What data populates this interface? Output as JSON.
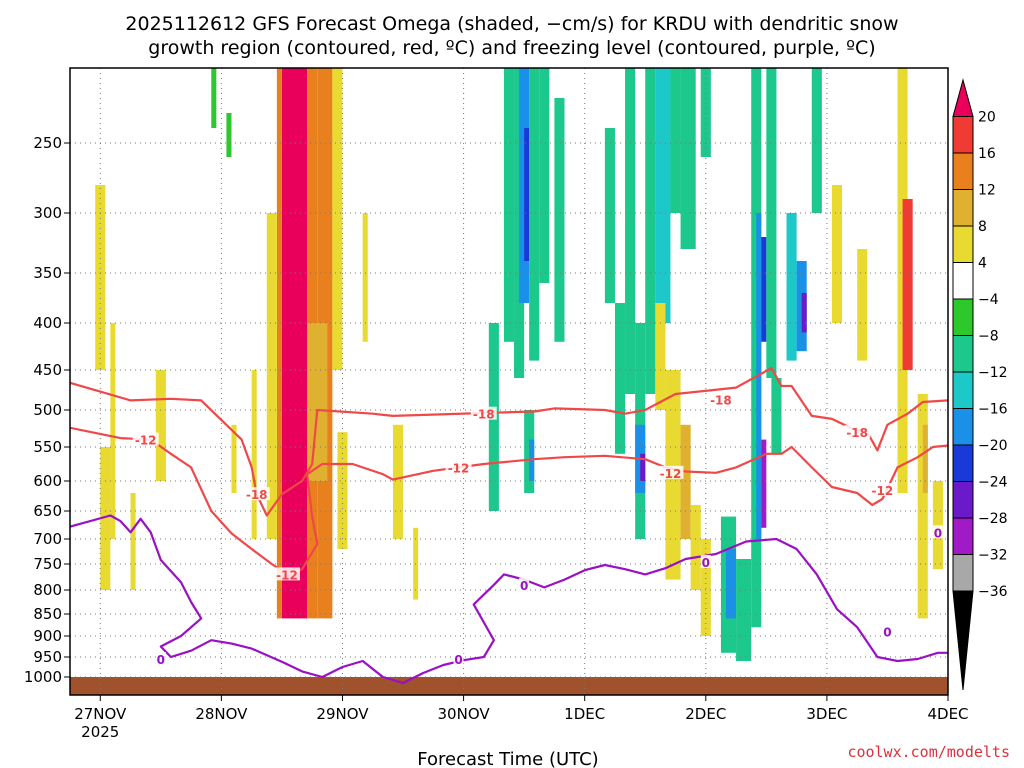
{
  "title_line1": "2025112612 GFS Forecast Omega (shaded, −cm/s) for KRDU with dendritic snow",
  "title_line2": "growth region (contoured, red, ºC) and freezing level (contoured, purple, ºC)",
  "xlabel": "Forecast Time (UTC)",
  "credit": "coolwx.com/modelts",
  "chart_data": {
    "type": "heatmap",
    "x_ticks": [
      {
        "label": "27NOV",
        "sub": "2025",
        "t": 0
      },
      {
        "label": "28NOV",
        "t": 24
      },
      {
        "label": "29NOV",
        "t": 48
      },
      {
        "label": "30NOV",
        "t": 72
      },
      {
        "label": "1DEC",
        "t": 96
      },
      {
        "label": "2DEC",
        "t": 120
      },
      {
        "label": "3DEC",
        "t": 144
      },
      {
        "label": "4DEC",
        "t": 168
      }
    ],
    "y_ticks": [
      250,
      300,
      350,
      400,
      450,
      500,
      550,
      600,
      650,
      700,
      750,
      800,
      850,
      900,
      950,
      1000
    ],
    "grid": true,
    "colorbar": {
      "labels": [
        "20",
        "16",
        "12",
        "8",
        "4",
        "−4",
        "−8",
        "−12",
        "−16",
        "−20",
        "−24",
        "−28",
        "−32",
        "−36"
      ],
      "colors": [
        "#e8005a",
        "#f03a34",
        "#e8801e",
        "#e0b030",
        "#e8da30",
        "#ffffff",
        "#2cc82c",
        "#1cc88c",
        "#1cc8c8",
        "#1a90e8",
        "#1a3ad8",
        "#6a1ac8",
        "#a01ac8",
        "#a8a8a8",
        "#000000"
      ]
    },
    "omega_cells": [
      {
        "t0": 36,
        "t1": 41,
        "p0": 180,
        "p1": 860,
        "v": 20
      },
      {
        "t0": 35,
        "t1": 36,
        "p0": 180,
        "p1": 860,
        "v": 14
      },
      {
        "t0": 41,
        "t1": 43,
        "p0": 180,
        "p1": 860,
        "v": 12
      },
      {
        "t0": 43,
        "t1": 46,
        "p0": 180,
        "p1": 860,
        "v": 14
      },
      {
        "t0": 37,
        "t1": 40,
        "p0": 180,
        "p1": 480,
        "v": 22
      },
      {
        "t0": 41,
        "t1": 45,
        "p0": 400,
        "p1": 600,
        "v": 10
      },
      {
        "t0": 46,
        "t1": 48,
        "p0": 200,
        "p1": 450,
        "v": 6
      },
      {
        "t0": 33,
        "t1": 35,
        "p0": 300,
        "p1": 700,
        "v": 6
      },
      {
        "t0": -1,
        "t1": 1,
        "p0": 280,
        "p1": 450,
        "v": 6
      },
      {
        "t0": 0,
        "t1": 2,
        "p0": 550,
        "p1": 800,
        "v": 6
      },
      {
        "t0": 2,
        "t1": 3,
        "p0": 400,
        "p1": 700,
        "v": 6
      },
      {
        "t0": 6,
        "t1": 7,
        "p0": 620,
        "p1": 800,
        "v": 6
      },
      {
        "t0": 11,
        "t1": 13,
        "p0": 450,
        "p1": 600,
        "v": 6
      },
      {
        "t0": 26,
        "t1": 27,
        "p0": 520,
        "p1": 620,
        "v": 6
      },
      {
        "t0": 30,
        "t1": 31,
        "p0": 450,
        "p1": 700,
        "v": 6
      },
      {
        "t0": 47,
        "t1": 49,
        "p0": 530,
        "p1": 720,
        "v": 6
      },
      {
        "t0": 52,
        "t1": 53,
        "p0": 300,
        "p1": 420,
        "v": 6
      },
      {
        "t0": 58,
        "t1": 60,
        "p0": 520,
        "p1": 700,
        "v": 6
      },
      {
        "t0": 62,
        "t1": 63,
        "p0": 680,
        "p1": 820,
        "v": 6
      },
      {
        "t0": 22,
        "t1": 23,
        "p0": 180,
        "p1": 240,
        "v": -6
      },
      {
        "t0": 25,
        "t1": 26,
        "p0": 230,
        "p1": 260,
        "v": -6
      },
      {
        "t0": 77,
        "t1": 79,
        "p0": 400,
        "p1": 650,
        "v": -8
      },
      {
        "t0": 80,
        "t1": 82,
        "p0": 190,
        "p1": 420,
        "v": -8
      },
      {
        "t0": 82,
        "t1": 84,
        "p0": 200,
        "p1": 460,
        "v": -8
      },
      {
        "t0": 83,
        "t1": 85,
        "p0": 200,
        "p1": 380,
        "v": -16
      },
      {
        "t0": 84,
        "t1": 85,
        "p0": 240,
        "p1": 340,
        "v": -22
      },
      {
        "t0": 85,
        "t1": 87,
        "p0": 190,
        "p1": 440,
        "v": -10
      },
      {
        "t0": 87,
        "t1": 89,
        "p0": 200,
        "p1": 360,
        "v": -8
      },
      {
        "t0": 90,
        "t1": 92,
        "p0": 220,
        "p1": 420,
        "v": -8
      },
      {
        "t0": 84,
        "t1": 86,
        "p0": 500,
        "p1": 620,
        "v": -10
      },
      {
        "t0": 85,
        "t1": 86,
        "p0": 540,
        "p1": 600,
        "v": -16
      },
      {
        "t0": 100,
        "t1": 102,
        "p0": 240,
        "p1": 380,
        "v": -8
      },
      {
        "t0": 102,
        "t1": 104,
        "p0": 380,
        "p1": 560,
        "v": -8
      },
      {
        "t0": 104,
        "t1": 106,
        "p0": 180,
        "p1": 480,
        "v": -8
      },
      {
        "t0": 106,
        "t1": 108,
        "p0": 400,
        "p1": 700,
        "v": -8
      },
      {
        "t0": 106,
        "t1": 108,
        "p0": 520,
        "p1": 620,
        "v": -16
      },
      {
        "t0": 107,
        "t1": 108,
        "p0": 560,
        "p1": 600,
        "v": -24
      },
      {
        "t0": 108,
        "t1": 110,
        "p0": 180,
        "p1": 480,
        "v": -10
      },
      {
        "t0": 110,
        "t1": 113,
        "p0": 180,
        "p1": 400,
        "v": -14
      },
      {
        "t0": 113,
        "t1": 115,
        "p0": 180,
        "p1": 300,
        "v": -8
      },
      {
        "t0": 115,
        "t1": 118,
        "p0": 180,
        "p1": 330,
        "v": -8
      },
      {
        "t0": 119,
        "t1": 121,
        "p0": 180,
        "p1": 260,
        "v": -8
      },
      {
        "t0": 110,
        "t1": 112,
        "p0": 380,
        "p1": 500,
        "v": 6
      },
      {
        "t0": 112,
        "t1": 115,
        "p0": 450,
        "p1": 780,
        "v": 6
      },
      {
        "t0": 115,
        "t1": 117,
        "p0": 520,
        "p1": 700,
        "v": 10
      },
      {
        "t0": 117,
        "t1": 119,
        "p0": 640,
        "p1": 800,
        "v": 6
      },
      {
        "t0": 119,
        "t1": 121,
        "p0": 700,
        "p1": 900,
        "v": 6
      },
      {
        "t0": 123,
        "t1": 126,
        "p0": 660,
        "p1": 940,
        "v": -8
      },
      {
        "t0": 124,
        "t1": 126,
        "p0": 720,
        "p1": 860,
        "v": -16
      },
      {
        "t0": 126,
        "t1": 129,
        "p0": 740,
        "p1": 960,
        "v": -8
      },
      {
        "t0": 129,
        "t1": 131,
        "p0": 190,
        "p1": 880,
        "v": -8
      },
      {
        "t0": 130,
        "t1": 131,
        "p0": 300,
        "p1": 700,
        "v": -18
      },
      {
        "t0": 131,
        "t1": 132,
        "p0": 540,
        "p1": 680,
        "v": -28
      },
      {
        "t0": 131,
        "t1": 132,
        "p0": 320,
        "p1": 420,
        "v": -22
      },
      {
        "t0": 132,
        "t1": 134,
        "p0": 190,
        "p1": 460,
        "v": -10
      },
      {
        "t0": 133,
        "t1": 135,
        "p0": 460,
        "p1": 560,
        "v": -8
      },
      {
        "t0": 136,
        "t1": 138,
        "p0": 300,
        "p1": 440,
        "v": -12
      },
      {
        "t0": 138,
        "t1": 140,
        "p0": 340,
        "p1": 430,
        "v": -16
      },
      {
        "t0": 139,
        "t1": 140,
        "p0": 370,
        "p1": 410,
        "v": -26
      },
      {
        "t0": 141,
        "t1": 143,
        "p0": 200,
        "p1": 300,
        "v": -8
      },
      {
        "t0": 145,
        "t1": 147,
        "p0": 280,
        "p1": 400,
        "v": 6
      },
      {
        "t0": 150,
        "t1": 152,
        "p0": 330,
        "p1": 440,
        "v": 6
      },
      {
        "t0": 158,
        "t1": 160,
        "p0": 180,
        "p1": 620,
        "v": 6
      },
      {
        "t0": 159,
        "t1": 161,
        "p0": 290,
        "p1": 450,
        "v": 18
      },
      {
        "t0": 162,
        "t1": 164,
        "p0": 480,
        "p1": 860,
        "v": 6
      },
      {
        "t0": 163,
        "t1": 164,
        "p0": 520,
        "p1": 620,
        "v": 10
      },
      {
        "t0": 165,
        "t1": 167,
        "p0": 600,
        "p1": 760,
        "v": 6
      }
    ],
    "contours": [
      {
        "name": "-18",
        "color": "#f04848",
        "pts": [
          [
            -6,
            466
          ],
          [
            6,
            488
          ],
          [
            14,
            486
          ],
          [
            20,
            488
          ],
          [
            28,
            540
          ],
          [
            30,
            580
          ],
          [
            31,
            622
          ],
          [
            33,
            658
          ],
          [
            36,
            622
          ],
          [
            40,
            600
          ],
          [
            42,
            575
          ],
          [
            43,
            500
          ],
          [
            54,
            505
          ],
          [
            58,
            508
          ],
          [
            76,
            504
          ],
          [
            86,
            502
          ],
          [
            90,
            498
          ],
          [
            100,
            500
          ],
          [
            104,
            505
          ],
          [
            108,
            500
          ],
          [
            114,
            480
          ],
          [
            126,
            472
          ],
          [
            130,
            458
          ],
          [
            133,
            448
          ],
          [
            135,
            470
          ],
          [
            137,
            470
          ],
          [
            141,
            508
          ],
          [
            145,
            512
          ],
          [
            149,
            525
          ],
          [
            152,
            530
          ],
          [
            154,
            555
          ],
          [
            156,
            520
          ],
          [
            160,
            505
          ],
          [
            163,
            490
          ],
          [
            168,
            488
          ]
        ]
      },
      {
        "name": "-12",
        "color": "#f04848",
        "pts": [
          [
            -6,
            524
          ],
          [
            4,
            538
          ],
          [
            10,
            540
          ],
          [
            14,
            560
          ],
          [
            18,
            580
          ],
          [
            22,
            650
          ],
          [
            26,
            690
          ],
          [
            30,
            720
          ],
          [
            34,
            750
          ],
          [
            37,
            770
          ],
          [
            40,
            760
          ],
          [
            43,
            710
          ],
          [
            42,
            660
          ],
          [
            41,
            590
          ],
          [
            44,
            575
          ],
          [
            50,
            575
          ],
          [
            56,
            590
          ],
          [
            58,
            598
          ],
          [
            66,
            585
          ],
          [
            76,
            575
          ],
          [
            86,
            568
          ],
          [
            92,
            565
          ],
          [
            100,
            563
          ],
          [
            108,
            568
          ],
          [
            112,
            580
          ],
          [
            116,
            586
          ],
          [
            122,
            588
          ],
          [
            126,
            580
          ],
          [
            132,
            560
          ],
          [
            135,
            560
          ],
          [
            137,
            550
          ],
          [
            141,
            580
          ],
          [
            145,
            610
          ],
          [
            150,
            620
          ],
          [
            153,
            640
          ],
          [
            155,
            630
          ],
          [
            158,
            580
          ],
          [
            162,
            565
          ],
          [
            165,
            550
          ],
          [
            168,
            548
          ]
        ]
      },
      {
        "name": "0",
        "color": "#9a10c4",
        "pts": [
          [
            -6,
            678
          ],
          [
            2,
            658
          ],
          [
            4,
            668
          ],
          [
            6,
            688
          ],
          [
            8,
            664
          ],
          [
            10,
            688
          ],
          [
            12,
            742
          ],
          [
            16,
            785
          ],
          [
            18,
            825
          ],
          [
            20,
            860
          ],
          [
            16,
            900
          ],
          [
            12,
            925
          ],
          [
            14,
            950
          ],
          [
            18,
            935
          ],
          [
            22,
            910
          ],
          [
            26,
            918
          ],
          [
            30,
            930
          ],
          [
            36,
            962
          ],
          [
            40,
            986
          ],
          [
            44,
            1000
          ],
          [
            48,
            975
          ],
          [
            52,
            960
          ],
          [
            56,
            1000
          ],
          [
            60,
            1010
          ],
          [
            64,
            990
          ],
          [
            68,
            970
          ],
          [
            72,
            958
          ],
          [
            76,
            950
          ],
          [
            78,
            910
          ],
          [
            74,
            830
          ],
          [
            78,
            790
          ],
          [
            80,
            770
          ],
          [
            84,
            780
          ],
          [
            88,
            795
          ],
          [
            92,
            780
          ],
          [
            96,
            762
          ],
          [
            100,
            752
          ],
          [
            104,
            760
          ],
          [
            108,
            770
          ],
          [
            112,
            758
          ],
          [
            116,
            740
          ],
          [
            122,
            730
          ],
          [
            128,
            705
          ],
          [
            134,
            700
          ],
          [
            138,
            720
          ],
          [
            142,
            770
          ],
          [
            146,
            840
          ],
          [
            150,
            880
          ],
          [
            154,
            950
          ],
          [
            158,
            960
          ],
          [
            162,
            955
          ],
          [
            166,
            940
          ],
          [
            168,
            940
          ]
        ]
      }
    ],
    "contour_labels": [
      {
        "text": "-18",
        "color": "#f04848",
        "t": 31,
        "p": 622
      },
      {
        "text": "-18",
        "color": "#f04848",
        "t": 76,
        "p": 505
      },
      {
        "text": "-18",
        "color": "#f04848",
        "t": 123,
        "p": 487
      },
      {
        "text": "-18",
        "color": "#f04848",
        "t": 150,
        "p": 530
      },
      {
        "text": "-12",
        "color": "#f04848",
        "t": 9,
        "p": 540
      },
      {
        "text": "-12",
        "color": "#f04848",
        "t": 37,
        "p": 770
      },
      {
        "text": "-12",
        "color": "#f04848",
        "t": 71,
        "p": 580
      },
      {
        "text": "-12",
        "color": "#f04848",
        "t": 113,
        "p": 588
      },
      {
        "text": "-12",
        "color": "#f04848",
        "t": 155,
        "p": 615
      },
      {
        "text": "0",
        "color": "#9a10c4",
        "t": 12,
        "p": 955
      },
      {
        "text": "0",
        "color": "#9a10c4",
        "t": 71,
        "p": 955
      },
      {
        "text": "0",
        "color": "#9a10c4",
        "t": 84,
        "p": 790
      },
      {
        "text": "0",
        "color": "#9a10c4",
        "t": 120,
        "p": 746
      },
      {
        "text": "0",
        "color": "#9a10c4",
        "t": 156,
        "p": 890
      },
      {
        "text": "0",
        "color": "#9a10c4",
        "t": 166,
        "p": 688
      }
    ]
  }
}
